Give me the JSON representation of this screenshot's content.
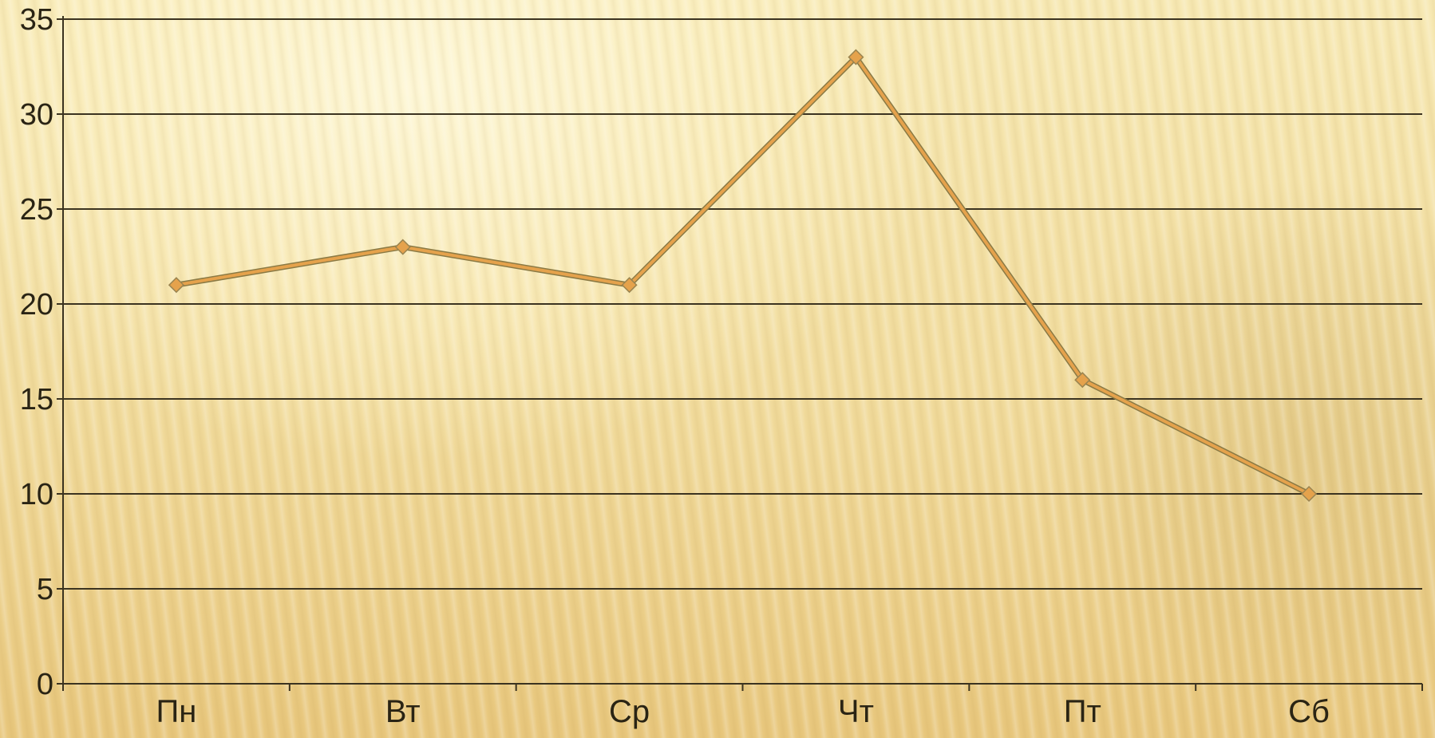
{
  "chart_data": {
    "type": "line",
    "categories": [
      "Пн",
      "Вт",
      "Ср",
      "Чт",
      "Пт",
      "Сб"
    ],
    "series": [
      {
        "values": [
          21,
          23,
          21,
          33,
          16,
          10
        ],
        "color": "#e5a24c"
      }
    ],
    "ylim": [
      0,
      35
    ],
    "yticks": [
      "0",
      "5",
      "10",
      "15",
      "20",
      "25",
      "30",
      "35"
    ],
    "grid": true,
    "marker": "diamond"
  }
}
